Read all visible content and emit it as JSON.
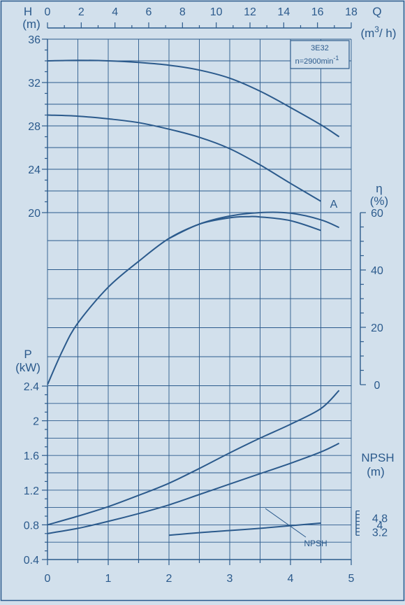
{
  "chart_data": {
    "type": "line",
    "model": "3E32",
    "speed": "n=2900min",
    "speed_exp": "-1",
    "curve_label": "A",
    "npsh_label": "NPSH",
    "axes": {
      "q_m3h": {
        "label": "Q",
        "unit_prefix": "(m",
        "unit_sup": "3",
        "unit_suffix": "/ h)",
        "range": [
          0,
          18
        ],
        "ticks": [
          "0",
          "2",
          "4",
          "6",
          "8",
          "10",
          "12",
          "14",
          "16",
          "18"
        ]
      },
      "q_ls": {
        "range": [
          0,
          5
        ],
        "ticks": [
          "0",
          "1",
          "2",
          "3",
          "4",
          "5"
        ]
      },
      "head": {
        "label": "H",
        "unit": "(m)",
        "range": [
          18,
          36
        ],
        "ticks": [
          "20",
          "24",
          "28",
          "32",
          "36"
        ]
      },
      "efficiency": {
        "label": "η",
        "unit": "(%)",
        "range": [
          0,
          60
        ],
        "ticks": [
          "0",
          "20",
          "40",
          "60"
        ]
      },
      "power": {
        "label": "P",
        "unit": "(kW)",
        "range": [
          0.4,
          2.4
        ],
        "ticks": [
          "0.4",
          "0.8",
          "1.2",
          "1.6",
          "2",
          "2.4"
        ]
      },
      "npsh": {
        "label": "NPSH",
        "unit": "(m)",
        "range": [
          0,
          6
        ],
        "ticks": [
          "3.2",
          "4",
          "4.8"
        ]
      }
    },
    "series": [
      {
        "key": "head_max",
        "axis": "head",
        "x": [
          0,
          0.5,
          1,
          1.5,
          2,
          2.5,
          3,
          3.5,
          4,
          4.5,
          4.8
        ],
        "values": [
          34.0,
          34.05,
          34.0,
          33.85,
          33.6,
          33.15,
          32.4,
          31.2,
          29.7,
          28.1,
          27.0
        ]
      },
      {
        "key": "head_A",
        "axis": "head",
        "x": [
          0,
          0.5,
          1,
          1.5,
          2,
          2.5,
          3,
          3.5,
          4,
          4.5
        ],
        "values": [
          29.0,
          28.9,
          28.65,
          28.3,
          27.7,
          26.95,
          25.9,
          24.4,
          22.7,
          21.05
        ]
      },
      {
        "key": "efficiency_max",
        "axis": "efficiency",
        "x": [
          0,
          0.25,
          0.5,
          1,
          1.5,
          2,
          2.5,
          3,
          3.5,
          4,
          4.5,
          4.8
        ],
        "values": [
          0,
          12,
          21.5,
          34,
          43,
          51,
          56,
          58.8,
          60,
          59.8,
          57.5,
          54.8
        ]
      },
      {
        "key": "efficiency_A",
        "axis": "efficiency",
        "x": [
          2,
          2.5,
          3,
          3.3,
          3.5,
          4,
          4.5
        ],
        "values": [
          51,
          56,
          58.2,
          58.6,
          58.5,
          57.2,
          53.8
        ]
      },
      {
        "key": "power_max",
        "axis": "power",
        "x": [
          0,
          0.5,
          1,
          1.5,
          2,
          2.5,
          3,
          3.5,
          4,
          4.5,
          4.8
        ],
        "values": [
          0.8,
          0.9,
          1.01,
          1.14,
          1.28,
          1.45,
          1.63,
          1.8,
          1.96,
          2.14,
          2.35
        ]
      },
      {
        "key": "power_A",
        "axis": "power",
        "x": [
          0,
          0.5,
          1,
          1.5,
          2,
          2.5,
          3,
          3.5,
          4,
          4.5,
          4.8
        ],
        "values": [
          0.7,
          0.76,
          0.84,
          0.93,
          1.03,
          1.15,
          1.27,
          1.39,
          1.51,
          1.64,
          1.74
        ]
      },
      {
        "key": "npsh",
        "axis": "npsh",
        "x": [
          2,
          2.5,
          3,
          3.5,
          4,
          4.5
        ],
        "values": [
          2.8,
          3.1,
          3.35,
          3.6,
          3.9,
          4.2
        ]
      }
    ]
  }
}
